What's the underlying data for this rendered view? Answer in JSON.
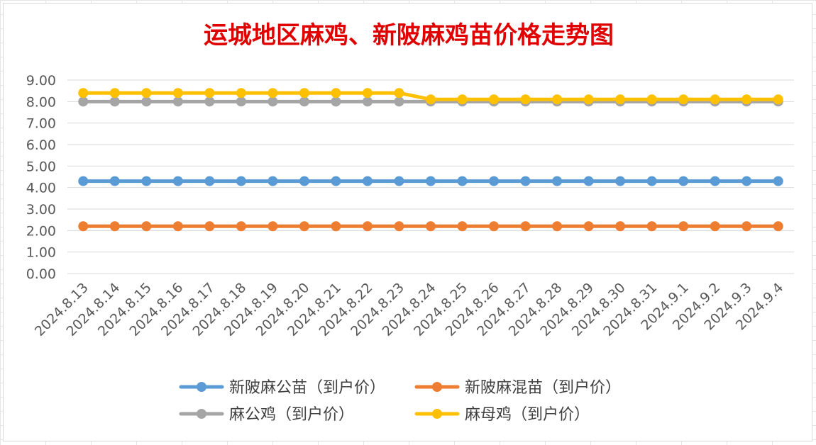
{
  "chart_data": {
    "type": "line",
    "title": "运城地区麻鸡、新陂麻鸡苗价格走势图",
    "xlabel": "",
    "ylabel": "",
    "ylim": [
      0,
      9
    ],
    "ytick_step": 1,
    "ytick_labels": [
      "0.00",
      "1.00",
      "2.00",
      "3.00",
      "4.00",
      "5.00",
      "6.00",
      "7.00",
      "8.00",
      "9.00"
    ],
    "grid": true,
    "legend_position": "bottom",
    "categories": [
      "2024.8.13",
      "2024.8.14",
      "2024.8.15",
      "2024.8.16",
      "2024.8.17",
      "2024.8.18",
      "2024.8.19",
      "2024.8.20",
      "2024.8.21",
      "2024.8.22",
      "2024.8.23",
      "2024.8.24",
      "2024.8.25",
      "2024.8.26",
      "2024.8.27",
      "2024.8.28",
      "2024.8.29",
      "2024.8.30",
      "2024.8.31",
      "2024.9.1",
      "2024.9.2",
      "2024.9.3",
      "2024.9.4"
    ],
    "series": [
      {
        "name": "新陂麻公苗（到户价）",
        "color": "#5b9bd5",
        "values": [
          4.3,
          4.3,
          4.3,
          4.3,
          4.3,
          4.3,
          4.3,
          4.3,
          4.3,
          4.3,
          4.3,
          4.3,
          4.3,
          4.3,
          4.3,
          4.3,
          4.3,
          4.3,
          4.3,
          4.3,
          4.3,
          4.3,
          4.3
        ]
      },
      {
        "name": "新陂麻混苗（到户价）",
        "color": "#ed7d31",
        "values": [
          2.2,
          2.2,
          2.2,
          2.2,
          2.2,
          2.2,
          2.2,
          2.2,
          2.2,
          2.2,
          2.2,
          2.2,
          2.2,
          2.2,
          2.2,
          2.2,
          2.2,
          2.2,
          2.2,
          2.2,
          2.2,
          2.2,
          2.2
        ]
      },
      {
        "name": "麻公鸡（到户价）",
        "color": "#a5a5a5",
        "values": [
          8.0,
          8.0,
          8.0,
          8.0,
          8.0,
          8.0,
          8.0,
          8.0,
          8.0,
          8.0,
          8.0,
          8.0,
          8.0,
          8.0,
          8.0,
          8.0,
          8.0,
          8.0,
          8.0,
          8.0,
          8.0,
          8.0,
          8.0
        ]
      },
      {
        "name": "麻母鸡（到户价）",
        "color": "#ffc000",
        "values": [
          8.4,
          8.4,
          8.4,
          8.4,
          8.4,
          8.4,
          8.4,
          8.4,
          8.4,
          8.4,
          8.4,
          8.1,
          8.1,
          8.1,
          8.1,
          8.1,
          8.1,
          8.1,
          8.1,
          8.1,
          8.1,
          8.1,
          8.1
        ]
      }
    ]
  }
}
